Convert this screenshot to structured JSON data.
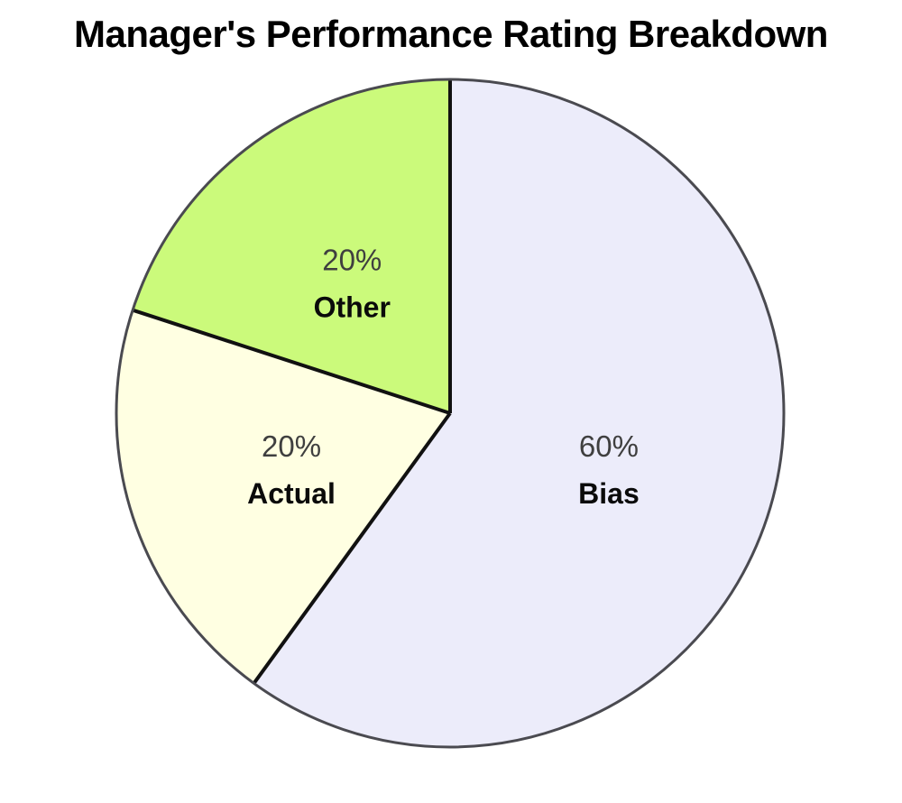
{
  "page": {
    "background": "#ffffff"
  },
  "chart_data": {
    "type": "pie",
    "title": "Manager's Performance Rating Breakdown",
    "start_angle_deg": 0,
    "direction": "clockwise",
    "legend": "none",
    "slices": [
      {
        "label": "Bias",
        "value": 60,
        "percent_label": "60%",
        "color": "#ECECFA"
      },
      {
        "label": "Actual",
        "value": 20,
        "percent_label": "20%",
        "color": "#FFFFE2"
      },
      {
        "label": "Other",
        "value": 20,
        "percent_label": "20%",
        "color": "#CBFA7B"
      }
    ],
    "style": {
      "rim_color": "#4a4a50",
      "rim_width": 3,
      "divider_color": "#111111",
      "divider_width": 4,
      "percent_color": "#3f3f3f",
      "name_color": "#0a0a0a",
      "title_color": "#000000"
    }
  }
}
